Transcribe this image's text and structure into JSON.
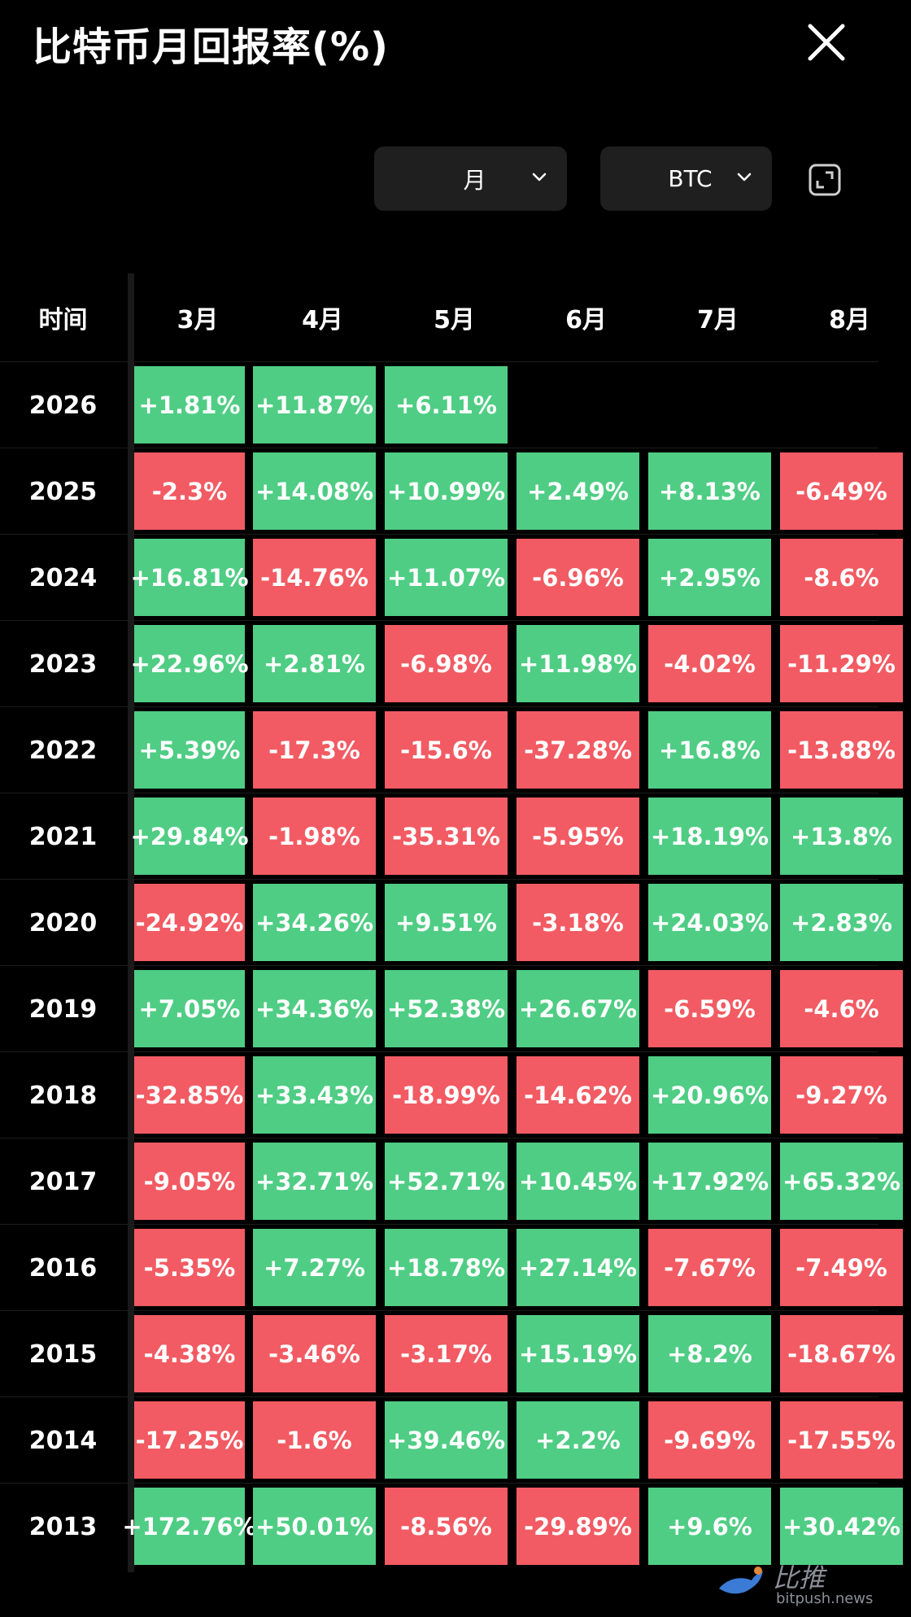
{
  "header": {
    "title": "比特币月回报率(%)"
  },
  "controls": {
    "period": "月",
    "asset": "BTC"
  },
  "table": {
    "year_header": "时间",
    "months": [
      "3月",
      "4月",
      "5月",
      "6月",
      "7月",
      "8月"
    ],
    "rows": [
      {
        "year": "2026",
        "values": [
          "+1.81%",
          "+11.87%",
          "+6.11%",
          null,
          null,
          null
        ]
      },
      {
        "year": "2025",
        "values": [
          "-2.3%",
          "+14.08%",
          "+10.99%",
          "+2.49%",
          "+8.13%",
          "-6.49%"
        ]
      },
      {
        "year": "2024",
        "values": [
          "+16.81%",
          "-14.76%",
          "+11.07%",
          "-6.96%",
          "+2.95%",
          "-8.6%"
        ]
      },
      {
        "year": "2023",
        "values": [
          "+22.96%",
          "+2.81%",
          "-6.98%",
          "+11.98%",
          "-4.02%",
          "-11.29%"
        ]
      },
      {
        "year": "2022",
        "values": [
          "+5.39%",
          "-17.3%",
          "-15.6%",
          "-37.28%",
          "+16.8%",
          "-13.88%"
        ]
      },
      {
        "year": "2021",
        "values": [
          "+29.84%",
          "-1.98%",
          "-35.31%",
          "-5.95%",
          "+18.19%",
          "+13.8%"
        ]
      },
      {
        "year": "2020",
        "values": [
          "-24.92%",
          "+34.26%",
          "+9.51%",
          "-3.18%",
          "+24.03%",
          "+2.83%"
        ]
      },
      {
        "year": "2019",
        "values": [
          "+7.05%",
          "+34.36%",
          "+52.38%",
          "+26.67%",
          "-6.59%",
          "-4.6%"
        ]
      },
      {
        "year": "2018",
        "values": [
          "-32.85%",
          "+33.43%",
          "-18.99%",
          "-14.62%",
          "+20.96%",
          "-9.27%"
        ]
      },
      {
        "year": "2017",
        "values": [
          "-9.05%",
          "+32.71%",
          "+52.71%",
          "+10.45%",
          "+17.92%",
          "+65.32%"
        ]
      },
      {
        "year": "2016",
        "values": [
          "-5.35%",
          "+7.27%",
          "+18.78%",
          "+27.14%",
          "-7.67%",
          "-7.49%"
        ]
      },
      {
        "year": "2015",
        "values": [
          "-4.38%",
          "-3.46%",
          "-3.17%",
          "+15.19%",
          "+8.2%",
          "-18.67%"
        ]
      },
      {
        "year": "2014",
        "values": [
          "-17.25%",
          "-1.6%",
          "+39.46%",
          "+2.2%",
          "-9.69%",
          "-17.55%"
        ]
      },
      {
        "year": "2013",
        "values": [
          "+172.76%",
          "+50.01%",
          "-8.56%",
          "-29.89%",
          "+9.6%",
          "+30.42%"
        ]
      }
    ]
  },
  "colors": {
    "positive": "#4fcd84",
    "negative": "#f25b63",
    "background": "#000000",
    "control_bg": "#1f1f1f"
  },
  "watermark": {
    "cn": "比推",
    "site": "bitpush.news"
  }
}
